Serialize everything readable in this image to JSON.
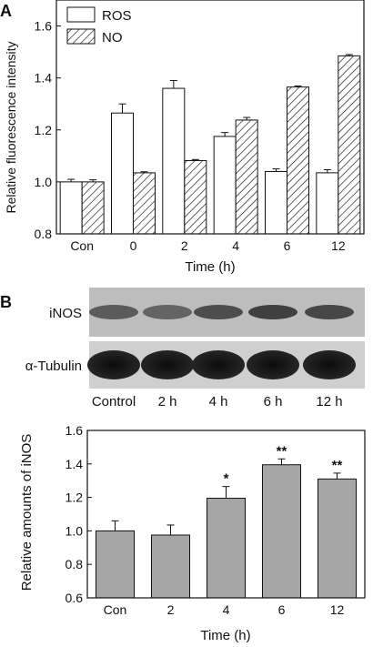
{
  "panels": {
    "a_letter": "A",
    "b_letter": "B"
  },
  "chart_data": [
    {
      "type": "bar",
      "categories": [
        "Con",
        "0",
        "2",
        "4",
        "6",
        "12"
      ],
      "series": [
        {
          "name": "ROS",
          "values": [
            1.0,
            1.265,
            1.36,
            1.175,
            1.04,
            1.035
          ],
          "errors": [
            0.01,
            0.035,
            0.03,
            0.015,
            0.01,
            0.012
          ],
          "pattern": "open"
        },
        {
          "name": "NO",
          "values": [
            1.0,
            1.035,
            1.082,
            1.238,
            1.365,
            1.485
          ],
          "errors": [
            0.008,
            0.004,
            0.004,
            0.01,
            0.004,
            0.005
          ],
          "pattern": "hatched"
        }
      ],
      "xlabel": "Time (h)",
      "ylabel": "Relative fluorescence intensity",
      "ylim": [
        0.8,
        1.7
      ],
      "yticks": [
        "0.8",
        "1.0",
        "1.2",
        "1.4",
        "1.6"
      ],
      "legend": "top-left",
      "grid": false
    },
    {
      "type": "bar",
      "categories": [
        "Con",
        "2",
        "4",
        "6",
        "12"
      ],
      "series": [
        {
          "values": [
            1.0,
            0.975,
            1.195,
            1.395,
            1.31
          ],
          "errors": [
            0.06,
            0.06,
            0.07,
            0.035,
            0.035
          ]
        }
      ],
      "annotations": [
        "",
        "",
        "*",
        "**",
        "**"
      ],
      "xlabel": "Time (h)",
      "ylabel": "Relative amounts of iNOS",
      "ylim": [
        0.6,
        1.6
      ],
      "yticks": [
        "0.6",
        "0.8",
        "1.0",
        "1.2",
        "1.4",
        "1.6"
      ],
      "bar_color": "#a6a6a6",
      "grid": false
    }
  ],
  "blot": {
    "rows": [
      "iNOS",
      "α-Tubulin"
    ],
    "lanes": [
      "Control",
      "2 h",
      "4 h",
      "6 h",
      "12 h"
    ]
  }
}
